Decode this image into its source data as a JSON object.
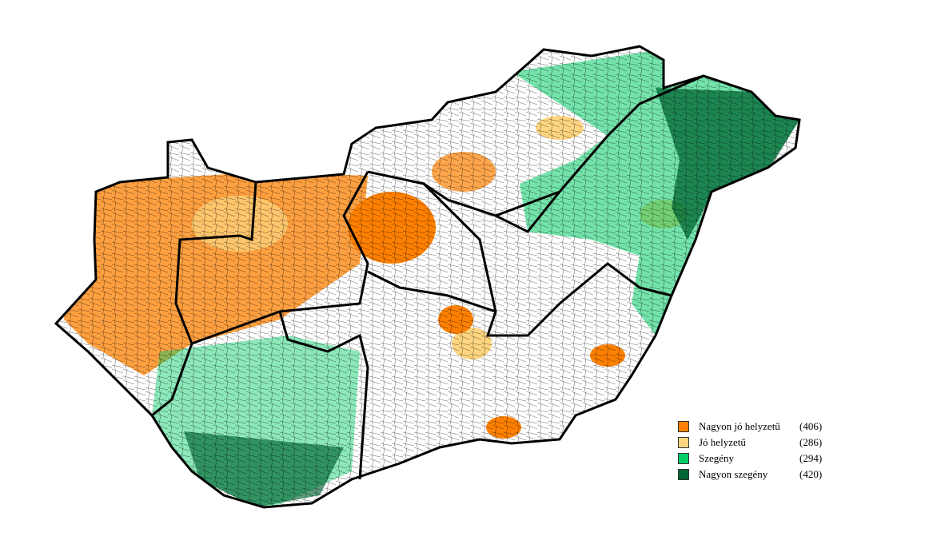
{
  "legend": {
    "items": [
      {
        "label": "Nagyon jó helyzetű",
        "count": "(406)",
        "color": "#ff8000"
      },
      {
        "label": "Jó helyzetű",
        "count": "(286)",
        "color": "#ffd580"
      },
      {
        "label": "Szegény",
        "count": "(294)",
        "color": "#00cc66"
      },
      {
        "label": "Nagyon szegény",
        "count": "(420)",
        "color": "#006633"
      }
    ]
  }
}
